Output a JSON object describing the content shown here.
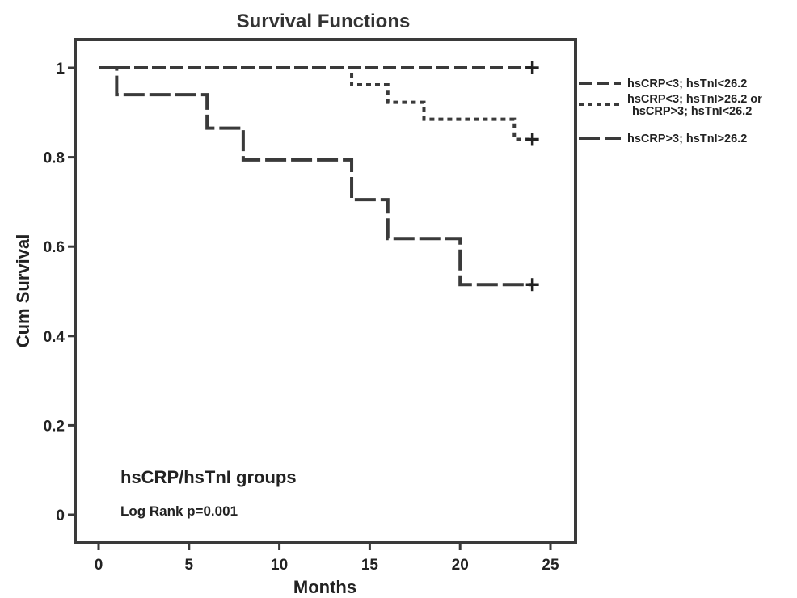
{
  "chart_data": {
    "type": "line",
    "title": "Survival Functions",
    "xlabel": "Months",
    "ylabel": "Cum Survival",
    "xlim": [
      -1,
      27
    ],
    "ylim": [
      -0.08,
      1.1
    ],
    "x_ticks": [
      0,
      5,
      10,
      15,
      20,
      25
    ],
    "y_ticks": [
      0,
      0.2,
      0.4,
      0.6,
      0.8,
      1
    ],
    "x_tick_labels": [
      "0",
      "5",
      "10",
      "15",
      "20",
      "25"
    ],
    "y_tick_labels": [
      "0",
      "0.2",
      "0.4",
      "0.6",
      "0.8",
      "1"
    ],
    "grid": false,
    "legend_position": "right",
    "annotation_title": "hsCRP/hsTnI groups",
    "annotation_text": "Log Rank p=0.001",
    "series": [
      {
        "name": "hsCRP<3; hsTnI<26.2",
        "dash": "dashed",
        "steps": [
          [
            0,
            1.0
          ],
          [
            24,
            1.0
          ]
        ],
        "censored": [
          [
            24,
            1.0
          ]
        ]
      },
      {
        "name": "hsCRP<3; hsTnI>26.2 or hsCRP>3; hsTnI<26.2",
        "name_lines": [
          "hsCRP<3; hsTnI>26.2 or",
          "hsCRP>3; hsTnI<26.2"
        ],
        "dash": "dotted",
        "steps": [
          [
            0,
            1.0
          ],
          [
            14,
            0.962
          ],
          [
            16,
            0.923
          ],
          [
            18,
            0.885
          ],
          [
            23,
            0.84
          ],
          [
            24,
            0.84
          ]
        ],
        "censored": [
          [
            24,
            0.84
          ]
        ]
      },
      {
        "name": "hsCRP>3; hsTnI>26.2",
        "dash": "long-dashed",
        "steps": [
          [
            0,
            1.0
          ],
          [
            1,
            0.94
          ],
          [
            6,
            0.865
          ],
          [
            8,
            0.794
          ],
          [
            14,
            0.705
          ],
          [
            16,
            0.618
          ],
          [
            20,
            0.515
          ],
          [
            24,
            0.515
          ]
        ],
        "censored": [
          [
            24,
            0.515
          ]
        ]
      }
    ]
  },
  "colors": {
    "line": "#3a3a3a",
    "frame": "#3a3a3a",
    "background": "#ffffff"
  }
}
